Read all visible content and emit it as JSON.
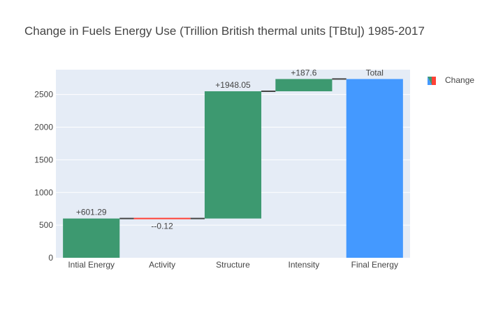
{
  "chart_data": {
    "type": "waterfall",
    "title": "Change in Fuels Energy Use (Trillion British thermal units [TBtu]) 1985-2017",
    "xlabel": "",
    "ylabel": "",
    "categories": [
      "Intial Energy",
      "Activity",
      "Structure",
      "Intensity",
      "Final Energy"
    ],
    "measure": [
      "relative",
      "relative",
      "relative",
      "relative",
      "total"
    ],
    "values": [
      601.29,
      -0.12,
      1948.05,
      187.6,
      2736.82
    ],
    "labels": [
      "+601.29",
      "--0.12",
      "+1948.05",
      "+187.6",
      "Total"
    ],
    "yticks": [
      0,
      500,
      1000,
      1500,
      2000,
      2500
    ],
    "ylim": [
      0,
      2880
    ],
    "grid": true,
    "legend": {
      "position": "top-right",
      "entries": [
        "Change"
      ]
    },
    "colors": {
      "increasing": "#3d9970",
      "decreasing": "#ff4136",
      "total": "#4499ff",
      "connector": "#444444",
      "plot_bg": "#e5ecf6",
      "grid": "#ffffff",
      "title": "#444444",
      "text": "#444444"
    }
  }
}
